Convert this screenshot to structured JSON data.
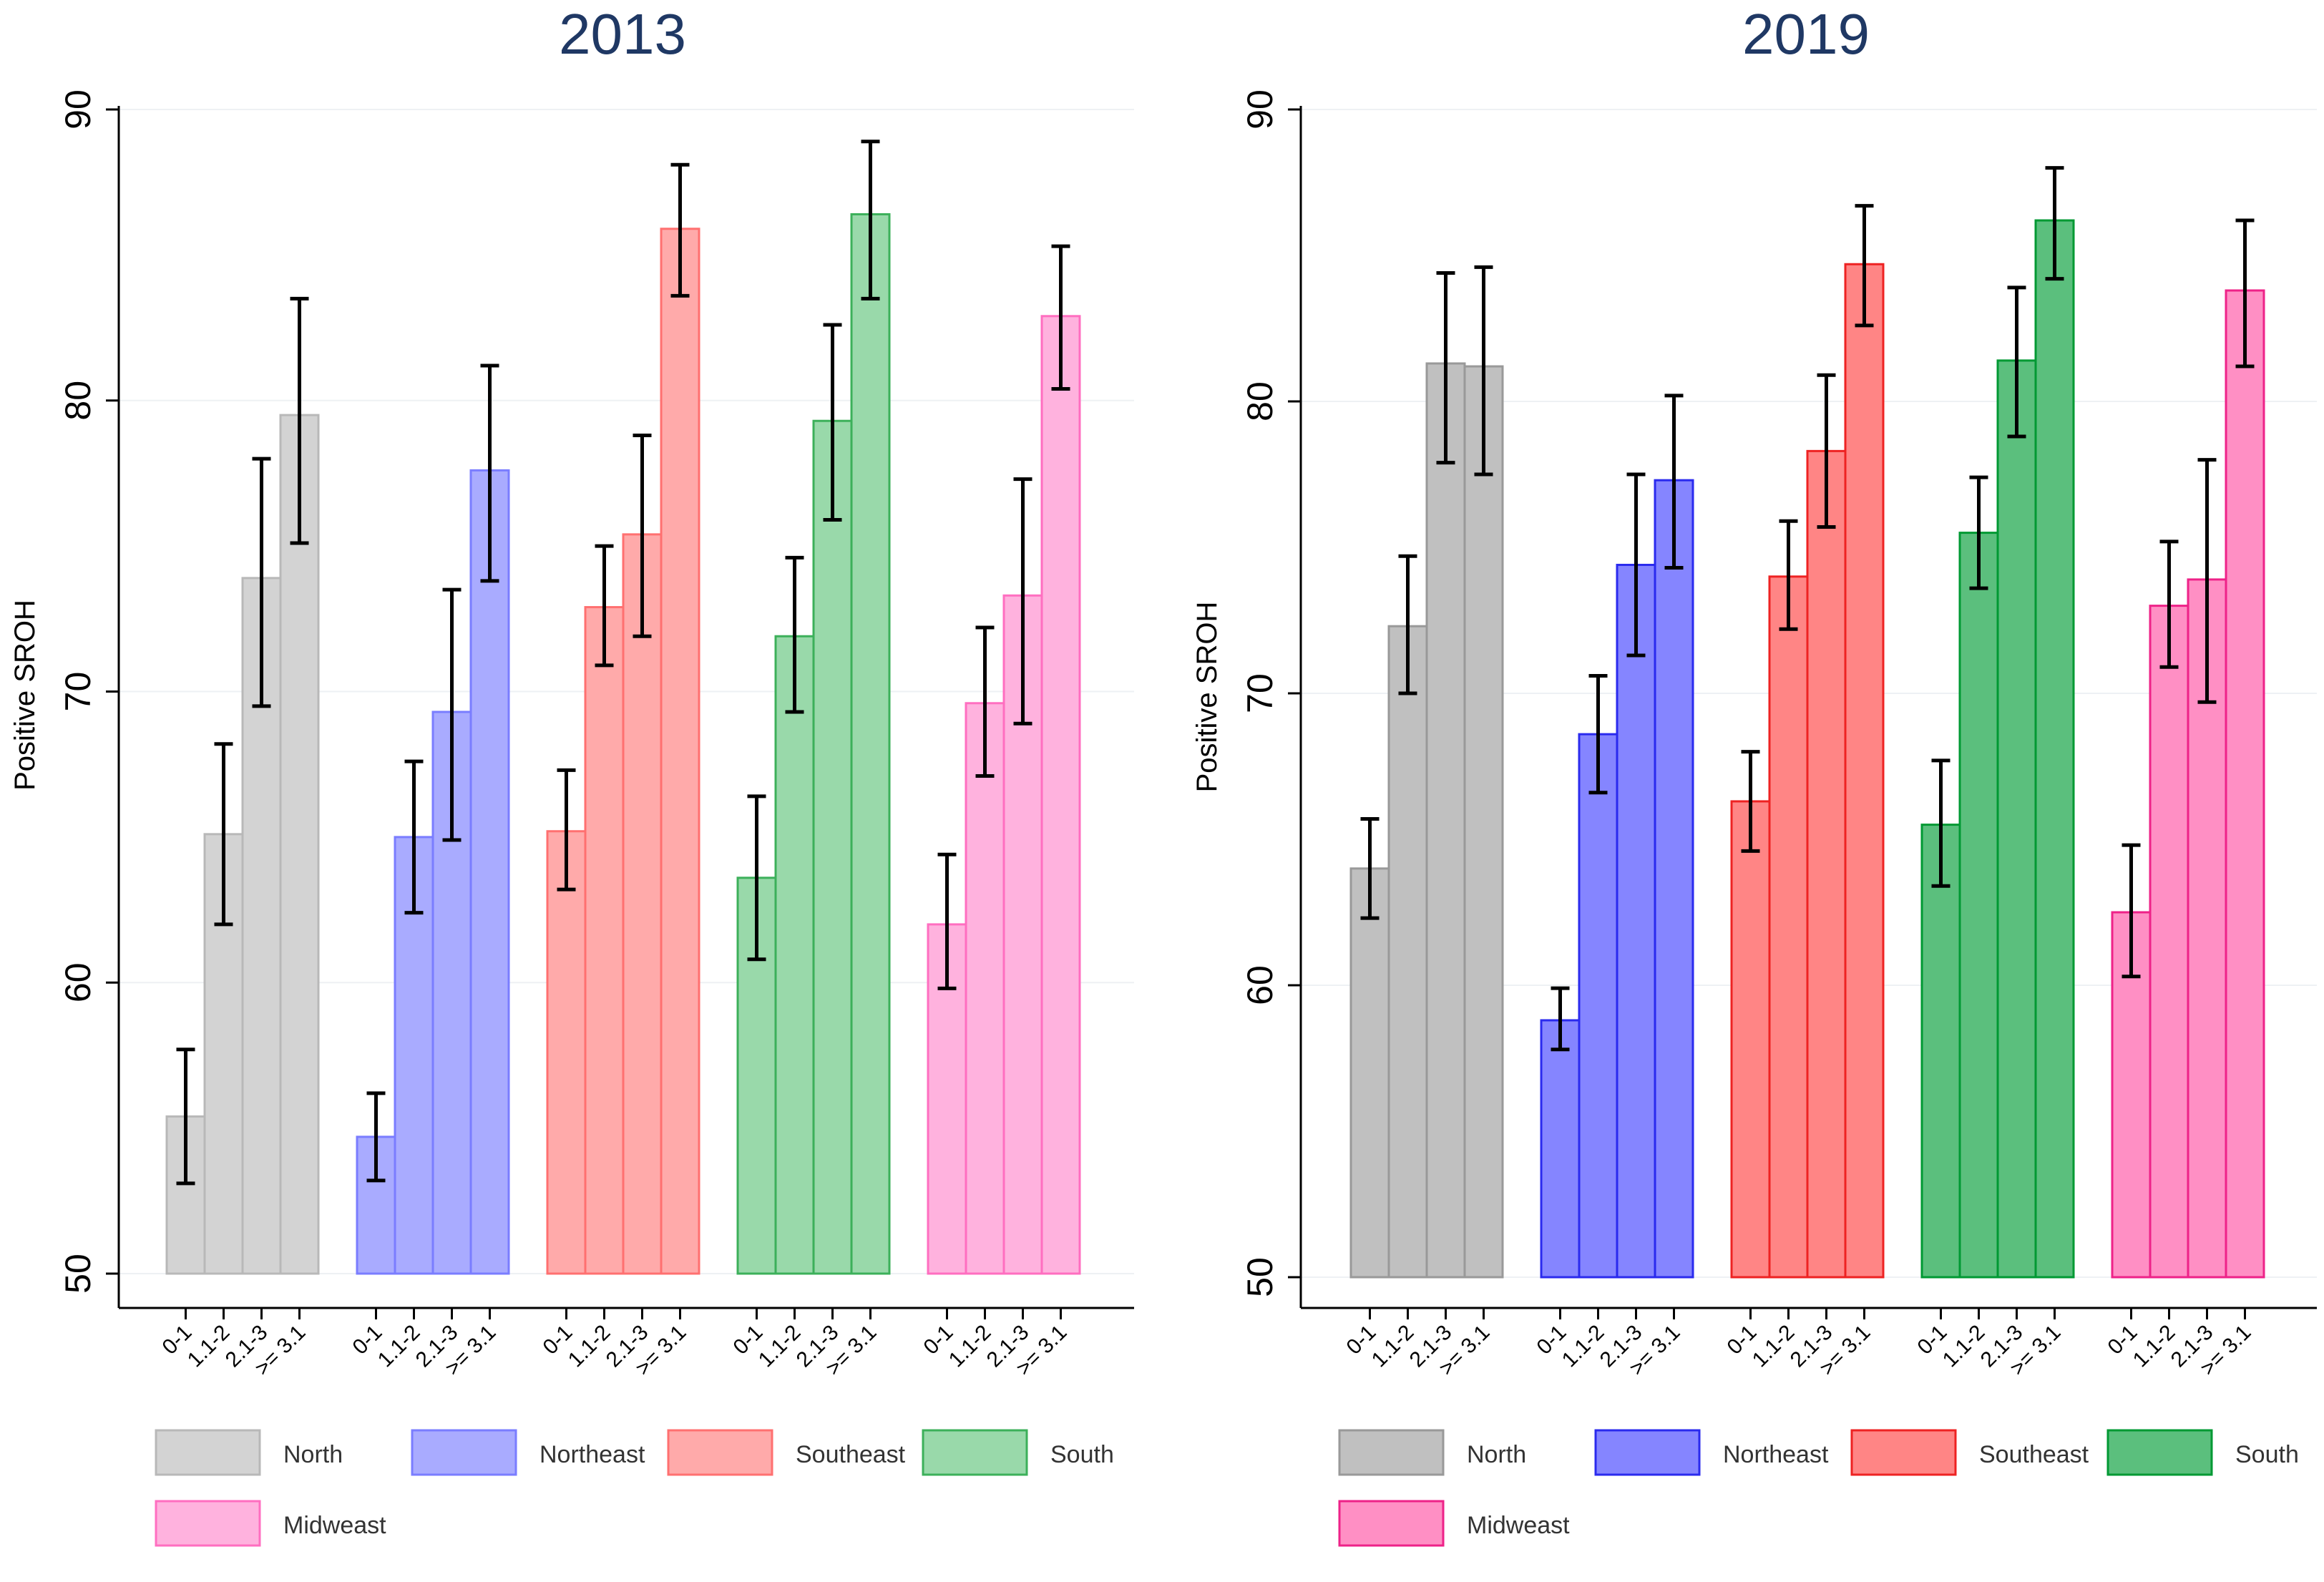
{
  "chart_data": [
    {
      "type": "bar",
      "title": "2013",
      "xlabel": "",
      "ylabel": "Positive SROH",
      "ylim": [
        50,
        90
      ],
      "yticks": [
        50,
        60,
        70,
        80,
        90
      ],
      "grid": true,
      "categories": [
        "0-1",
        "1.1-2",
        "2.1-3",
        ">= 3.1"
      ],
      "series": [
        {
          "name": "North",
          "color": "#d3d3d3",
          "edge": "#b8b8b8",
          "values": [
            55.4,
            65.1,
            73.9,
            79.5
          ],
          "ci_low": [
            53.1,
            62.0,
            69.5,
            75.1
          ],
          "ci_high": [
            57.7,
            68.2,
            78.0,
            83.5
          ]
        },
        {
          "name": "Northeast",
          "color": "#a9abff",
          "edge": "#7a7dff",
          "values": [
            54.7,
            65.0,
            69.3,
            77.6
          ],
          "ci_low": [
            53.2,
            62.4,
            64.9,
            73.8
          ],
          "ci_high": [
            56.2,
            67.6,
            73.5,
            81.2
          ]
        },
        {
          "name": "Southeast",
          "color": "#ffaaaa",
          "edge": "#ff7070",
          "values": [
            65.2,
            72.9,
            75.4,
            85.9
          ],
          "ci_low": [
            63.2,
            70.9,
            71.9,
            83.6
          ],
          "ci_high": [
            67.3,
            75.0,
            78.8,
            88.1
          ]
        },
        {
          "name": "South",
          "color": "#99d9aa",
          "edge": "#3cb05a",
          "values": [
            63.6,
            71.9,
            79.3,
            86.4
          ],
          "ci_low": [
            60.8,
            69.3,
            75.9,
            83.5
          ],
          "ci_high": [
            66.4,
            74.6,
            82.6,
            88.9
          ]
        },
        {
          "name": "Midweast",
          "color": "#ffb2de",
          "edge": "#ff6ec0",
          "values": [
            62.0,
            69.6,
            73.3,
            82.9
          ],
          "ci_low": [
            59.8,
            67.1,
            68.9,
            80.4
          ],
          "ci_high": [
            64.4,
            72.2,
            77.3,
            85.3
          ]
        }
      ],
      "legend": [
        "North",
        "Northeast",
        "Southeast",
        "South",
        "Midweast"
      ]
    },
    {
      "type": "bar",
      "title": "2019",
      "xlabel": "",
      "ylabel": "Positive SROH",
      "ylim": [
        50,
        90
      ],
      "yticks": [
        50,
        60,
        70,
        80,
        90
      ],
      "grid": true,
      "categories": [
        "0-1",
        "1.1-2",
        "2.1-3",
        ">= 3.1"
      ],
      "series": [
        {
          "name": "North",
          "color": "#c0c0c0",
          "edge": "#999999",
          "values": [
            64.0,
            72.3,
            81.3,
            81.2
          ],
          "ci_low": [
            62.3,
            70.0,
            77.9,
            77.5
          ],
          "ci_high": [
            65.7,
            74.7,
            84.4,
            84.6
          ]
        },
        {
          "name": "Northeast",
          "color": "#8585ff",
          "edge": "#2a2aee",
          "values": [
            58.8,
            68.6,
            74.4,
            77.3
          ],
          "ci_low": [
            57.8,
            66.6,
            71.3,
            74.3
          ],
          "ci_high": [
            59.9,
            70.6,
            77.5,
            80.2
          ]
        },
        {
          "name": "Southeast",
          "color": "#ff8585",
          "edge": "#ee2222",
          "values": [
            66.3,
            74.0,
            78.3,
            84.7
          ],
          "ci_low": [
            64.6,
            72.2,
            75.7,
            82.6
          ],
          "ci_high": [
            68.0,
            75.9,
            80.9,
            86.7
          ]
        },
        {
          "name": "South",
          "color": "#5bbf7d",
          "edge": "#009933",
          "values": [
            65.5,
            75.5,
            81.4,
            86.2
          ],
          "ci_low": [
            63.4,
            73.6,
            78.8,
            84.2
          ],
          "ci_high": [
            67.7,
            77.4,
            83.9,
            88.0
          ]
        },
        {
          "name": "Midweast",
          "color": "#ff8fc4",
          "edge": "#ee2288",
          "values": [
            62.5,
            73.0,
            73.9,
            83.8
          ],
          "ci_low": [
            60.3,
            70.9,
            69.7,
            81.2
          ],
          "ci_high": [
            64.8,
            75.2,
            78.0,
            86.2
          ]
        }
      ],
      "legend": [
        "North",
        "Northeast",
        "Southeast",
        "South",
        "Midweast"
      ]
    }
  ]
}
